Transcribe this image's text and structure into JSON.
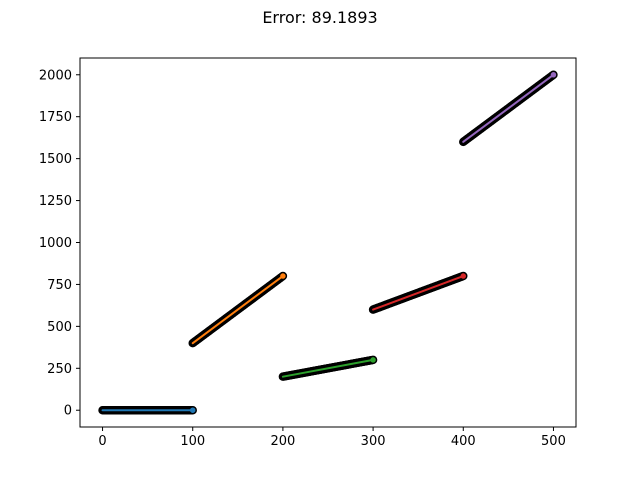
{
  "chart_data": {
    "type": "scatter",
    "title": "Error: 89.1893",
    "xlabel": "",
    "ylabel": "",
    "xlim": [
      -25,
      525
    ],
    "ylim": [
      -100,
      2100
    ],
    "x_ticks": [
      0,
      100,
      200,
      300,
      400,
      500
    ],
    "y_ticks": [
      0,
      250,
      500,
      750,
      1000,
      1250,
      1500,
      1750,
      2000
    ],
    "grid": false,
    "legend": "none",
    "marker_edge_color": "#000000",
    "series": [
      {
        "x": [
          0,
          100
        ],
        "y": [
          0,
          0
        ],
        "color": "#1f77b4"
      },
      {
        "x": [
          100,
          200
        ],
        "y": [
          400,
          800
        ],
        "color": "#ff7f0e"
      },
      {
        "x": [
          200,
          300
        ],
        "y": [
          200,
          300
        ],
        "color": "#2ca02c"
      },
      {
        "x": [
          300,
          400
        ],
        "y": [
          600,
          800
        ],
        "color": "#d62728"
      },
      {
        "x": [
          400,
          500
        ],
        "y": [
          1600,
          2000
        ],
        "color": "#9467bd"
      }
    ]
  }
}
